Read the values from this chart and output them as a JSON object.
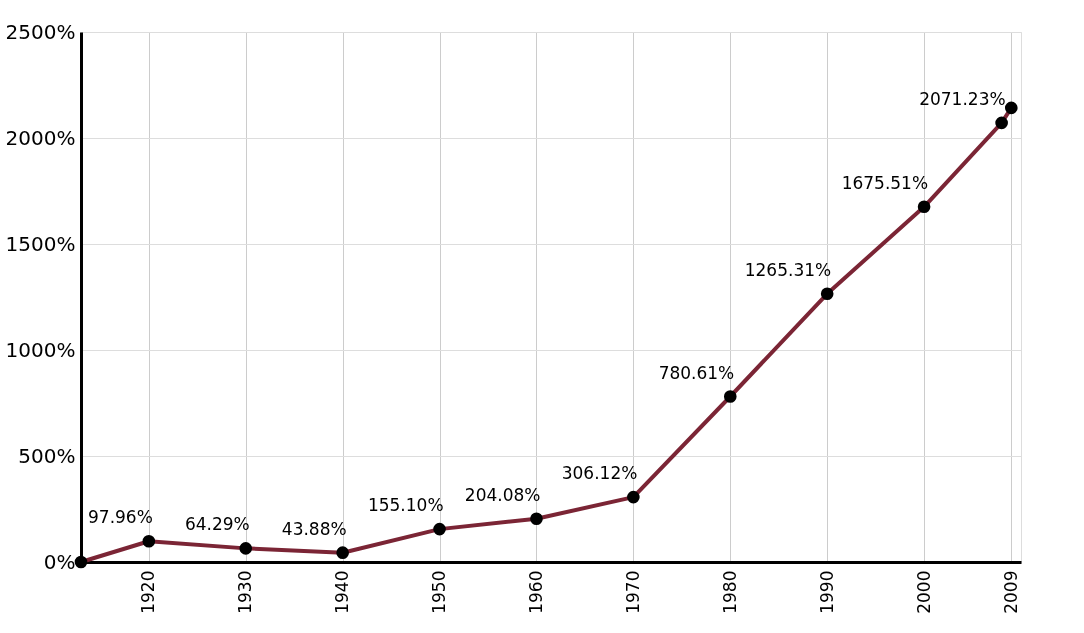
{
  "chart_data": {
    "type": "line",
    "x": [
      1913,
      1920,
      1930,
      1940,
      1950,
      1960,
      1970,
      1980,
      1990,
      2000,
      2008,
      2009
    ],
    "series": [
      {
        "color": "#7b2535",
        "values": [
          0,
          97.96,
          64.29,
          43.88,
          155.1,
          204.08,
          306.12,
          780.61,
          1265.31,
          1675.51,
          2071.23,
          2142
        ],
        "value_labels": [
          null,
          "97.96%",
          "64.29%",
          "43.88%",
          "155.10%",
          "204.08%",
          "306.12%",
          "780.61%",
          "1265.31%",
          "1675.51%",
          "2071.23%",
          null
        ]
      }
    ],
    "xlim": [
      1913,
      2010
    ],
    "xticks": [
      1920,
      1930,
      1940,
      1950,
      1960,
      1970,
      1980,
      1990,
      2000,
      2009
    ],
    "ylim": [
      0,
      2500
    ],
    "yticks": [
      {
        "value": 0,
        "label": "0%"
      },
      {
        "value": 500,
        "label": "500%"
      },
      {
        "value": 1000,
        "label": "1000%"
      },
      {
        "value": 1500,
        "label": "1500%"
      },
      {
        "value": 2000,
        "label": "2000%"
      },
      {
        "value": 2500,
        "label": "2500%"
      }
    ],
    "grid": true,
    "marker": "circle",
    "line_style": "solid"
  }
}
